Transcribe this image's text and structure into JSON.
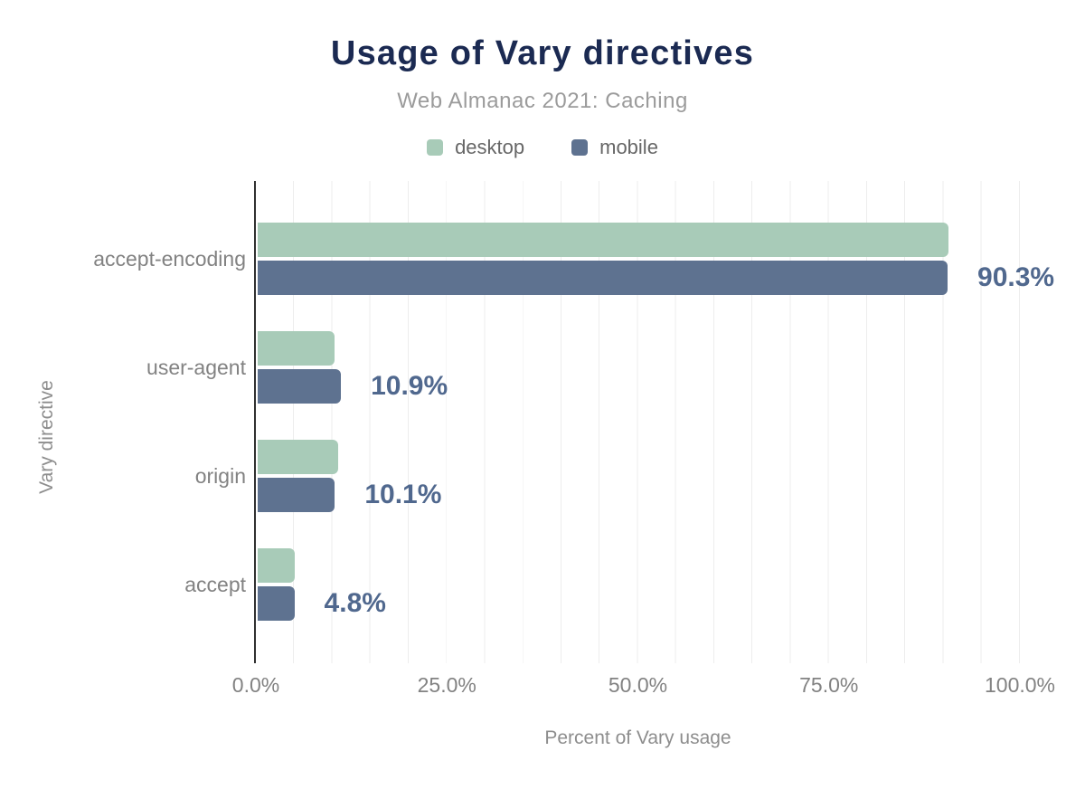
{
  "chart_data": {
    "type": "bar",
    "orientation": "horizontal",
    "title": "Usage of Vary directives",
    "subtitle": "Web Almanac 2021: Caching",
    "xlabel": "Percent of Vary usage",
    "ylabel": "Vary directive",
    "categories": [
      "accept-encoding",
      "user-agent",
      "origin",
      "accept"
    ],
    "series": [
      {
        "name": "desktop",
        "color": "#a8cbb8",
        "values": [
          90.4,
          10.0,
          10.5,
          4.8
        ]
      },
      {
        "name": "mobile",
        "color": "#5e7290",
        "values": [
          90.3,
          10.9,
          10.1,
          4.8
        ]
      }
    ],
    "annotations": [
      "90.3%",
      "10.9%",
      "10.1%",
      "4.8%"
    ],
    "x_ticks": [
      "0.0%",
      "25.0%",
      "50.0%",
      "75.0%",
      "100.0%"
    ],
    "xlim": [
      0,
      100
    ],
    "grid": {
      "vertical_minor_every_percent": 5,
      "horizontal": false
    },
    "legend_position": "top"
  },
  "colors": {
    "background": "#ffffff",
    "title": "#1b2a52",
    "subtitle": "#9b9b9b",
    "legend_text": "#666666",
    "category_label": "#828282",
    "tick_label": "#828282",
    "axis_title": "#8d8d8d",
    "annotation": "#50688e",
    "desktop_bar": "#a8cbb8",
    "mobile_bar": "#5e7290",
    "gridline": "#ededed",
    "axis_line": "#303030"
  }
}
